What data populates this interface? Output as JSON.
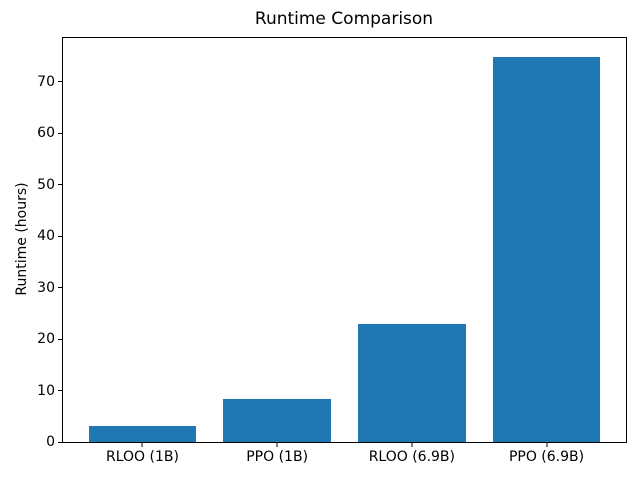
{
  "chart_data": {
    "type": "bar",
    "title": "Runtime Comparison",
    "xlabel": "",
    "ylabel": "Runtime (hours)",
    "categories": [
      "RLOO (1B)",
      "PPO (1B)",
      "RLOO (6.9B)",
      "PPO (6.9B)"
    ],
    "values": [
      3.2,
      8.3,
      23.0,
      74.8
    ],
    "yticks": [
      0,
      10,
      20,
      30,
      40,
      50,
      60,
      70
    ],
    "ylim": [
      0,
      78.5
    ],
    "bar_color": "#1f77b4",
    "bar_width_fraction": 0.8,
    "grid": false,
    "legend": "none",
    "spines": "box"
  }
}
